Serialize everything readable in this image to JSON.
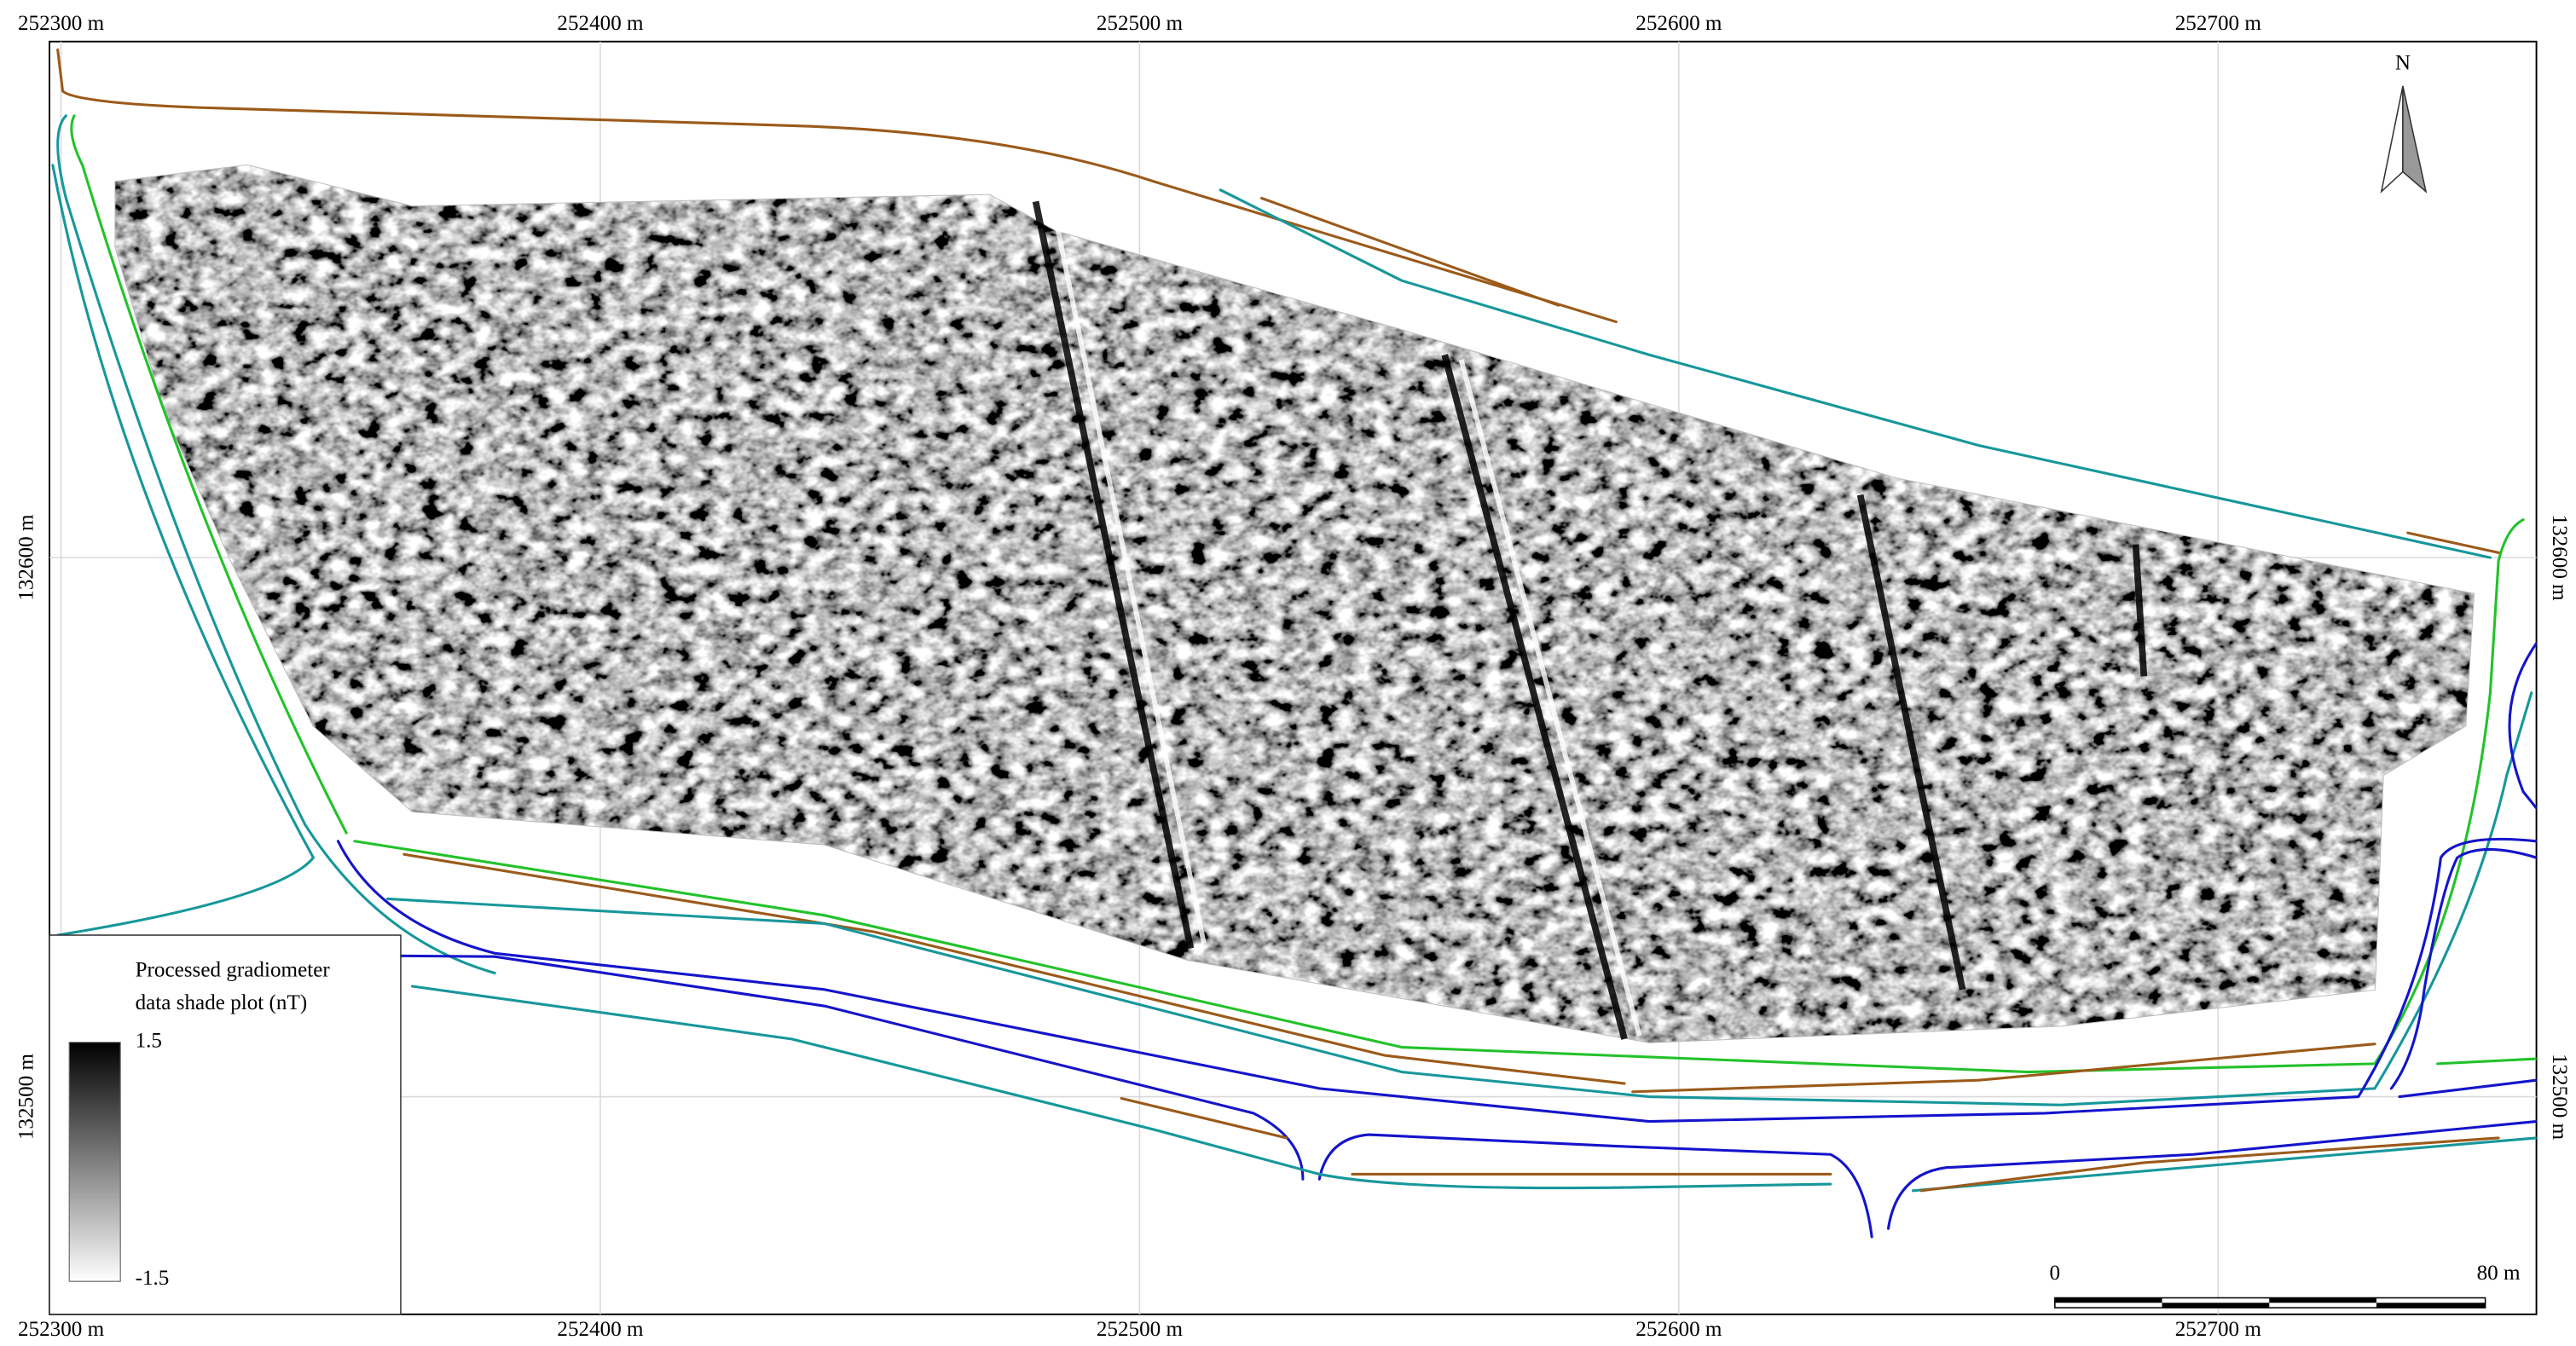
{
  "grid": {
    "x_labels": [
      "252300 m",
      "252400 m",
      "252500 m",
      "252600 m",
      "252700 m"
    ],
    "y_labels": [
      "132600 m",
      "132500 m"
    ]
  },
  "north_arrow": "N",
  "legend": {
    "title": [
      "Processed gradiometer",
      "data shade plot (nT)"
    ],
    "max": "1.5",
    "min": "-1.5"
  },
  "scale_bar": {
    "start": "0",
    "end": "80 m"
  }
}
